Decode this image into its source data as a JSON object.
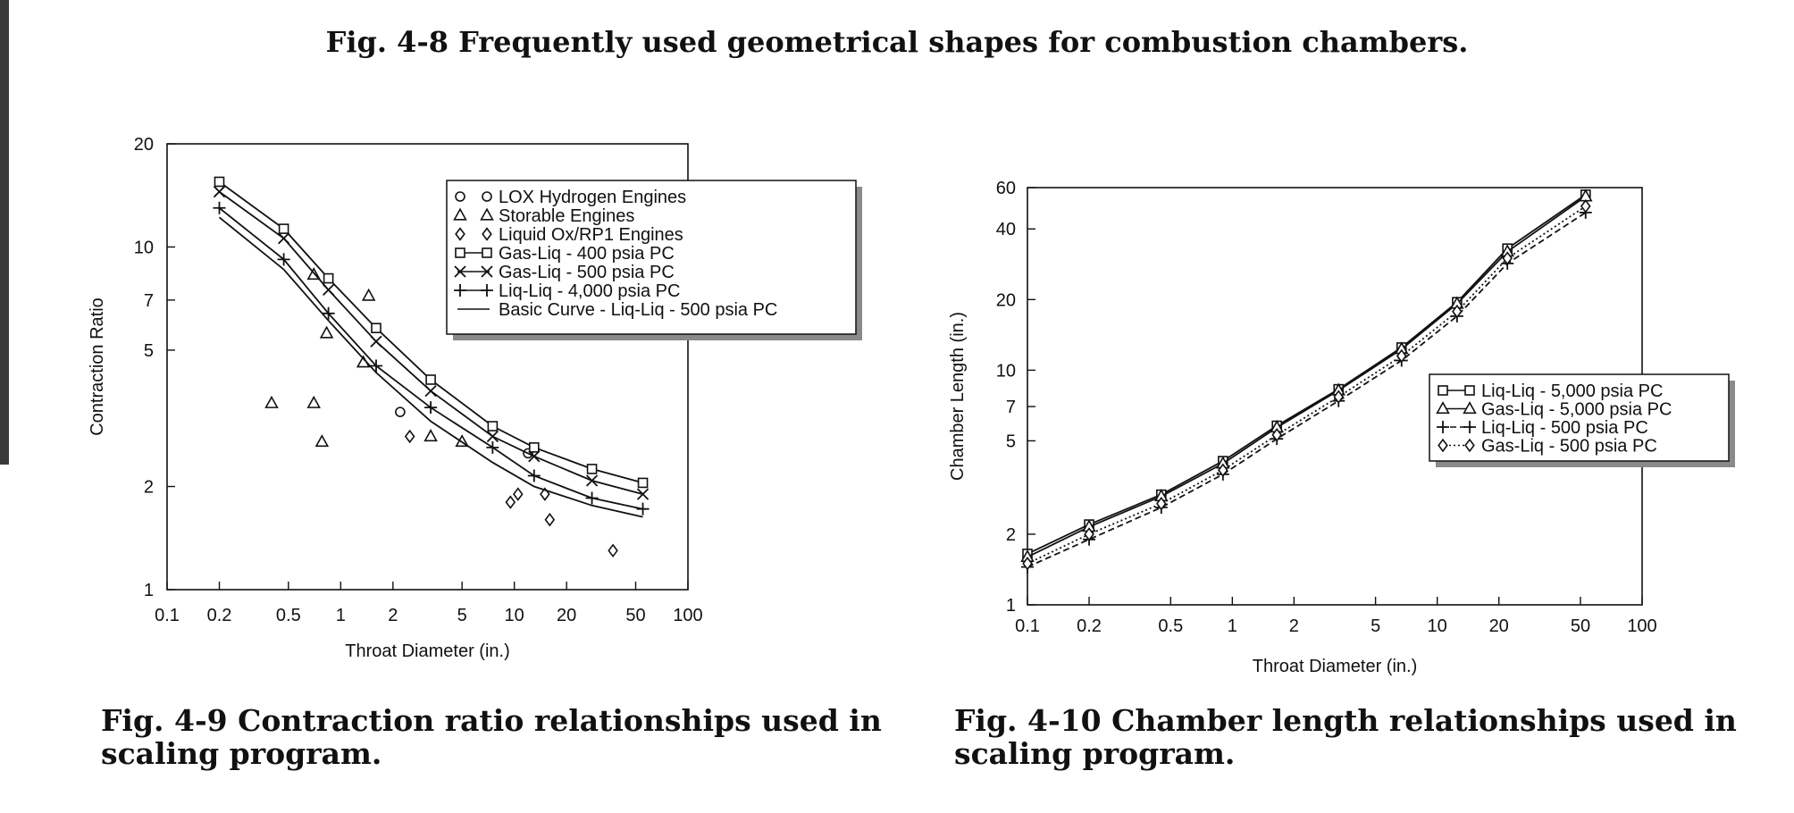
{
  "captions": {
    "top": "Fig. 4-8 Frequently used geometrical shapes for combustion chambers.",
    "left": "Fig. 4-9 Contraction ratio relationships used in scaling program.",
    "right": "Fig. 4-10 Chamber length relationships used in scaling program."
  },
  "chart_data": [
    {
      "type": "scatter",
      "title": "",
      "xlabel": "Throat Diameter (in.)",
      "ylabel": "Contraction Ratio",
      "xscale": "log",
      "yscale": "log",
      "xlim": [
        0.1,
        100
      ],
      "ylim": [
        1,
        20
      ],
      "xticks": [
        0.1,
        0.2,
        0.5,
        1,
        2,
        5,
        10,
        20,
        50,
        100
      ],
      "xtick_labels": [
        "0.1",
        "0.2",
        "0.5",
        "1",
        "2",
        "5",
        "10",
        "20",
        "50",
        "100"
      ],
      "yticks": [
        1,
        2,
        5,
        7,
        10,
        20
      ],
      "ytick_labels": [
        "1",
        "2",
        "5",
        "7",
        "10",
        "20"
      ],
      "grid": false,
      "legend_position": "top-right",
      "series": [
        {
          "name": "LOX Hydrogen Engines",
          "marker": "circle-open",
          "points": [
            [
              2.2,
              3.3
            ],
            [
              12,
              2.5
            ]
          ]
        },
        {
          "name": "Storable Engines",
          "marker": "triangle-open",
          "points": [
            [
              0.4,
              3.5
            ],
            [
              0.7,
              3.5
            ],
            [
              0.78,
              2.7
            ],
            [
              0.7,
              8.3
            ],
            [
              0.83,
              5.6
            ],
            [
              1.35,
              4.6
            ],
            [
              1.45,
              7.2
            ],
            [
              3.3,
              2.8
            ],
            [
              5,
              2.7
            ]
          ]
        },
        {
          "name": "Liquid Ox/RP1 Engines",
          "marker": "diamond-open",
          "points": [
            [
              2.5,
              2.8
            ],
            [
              9.5,
              1.8
            ],
            [
              10.5,
              1.9
            ],
            [
              15,
              1.9
            ],
            [
              16,
              1.6
            ],
            [
              37,
              1.3
            ]
          ]
        },
        {
          "name": "Gas-Liq - 400 psia PC",
          "marker": "square-open",
          "line": true,
          "points": [
            [
              0.2,
              15.5
            ],
            [
              0.47,
              11.3
            ],
            [
              0.85,
              8.1
            ],
            [
              1.6,
              5.8
            ],
            [
              3.3,
              4.1
            ],
            [
              7.5,
              3.0
            ],
            [
              13,
              2.6
            ],
            [
              28,
              2.25
            ],
            [
              55,
              2.05
            ]
          ]
        },
        {
          "name": "Gas-Liq - 500 psia PC",
          "marker": "x",
          "line": true,
          "points": [
            [
              0.2,
              14.5
            ],
            [
              0.47,
              10.6
            ],
            [
              0.85,
              7.5
            ],
            [
              1.6,
              5.3
            ],
            [
              3.3,
              3.8
            ],
            [
              7.5,
              2.8
            ],
            [
              13,
              2.45
            ],
            [
              28,
              2.08
            ],
            [
              55,
              1.9
            ]
          ]
        },
        {
          "name": "Liq-Liq - 4,000 psia PC",
          "marker": "plus",
          "line": true,
          "points": [
            [
              0.2,
              13.0
            ],
            [
              0.47,
              9.2
            ],
            [
              0.85,
              6.4
            ],
            [
              1.6,
              4.5
            ],
            [
              3.3,
              3.4
            ],
            [
              7.5,
              2.6
            ],
            [
              13,
              2.15
            ],
            [
              28,
              1.85
            ],
            [
              55,
              1.72
            ]
          ]
        },
        {
          "name": "Basic Curve - Liq-Liq - 500 psia PC",
          "marker": "none",
          "line": true,
          "points": [
            [
              0.2,
              12.2
            ],
            [
              0.47,
              8.6
            ],
            [
              0.85,
              6.1
            ],
            [
              1.6,
              4.3
            ],
            [
              3.3,
              3.1
            ],
            [
              7.5,
              2.35
            ],
            [
              13,
              2.0
            ],
            [
              28,
              1.76
            ],
            [
              55,
              1.63
            ]
          ]
        }
      ]
    },
    {
      "type": "line",
      "title": "",
      "xlabel": "Throat Diameter (in.)",
      "ylabel": "Chamber Length (in.)",
      "xscale": "log",
      "yscale": "log",
      "xlim": [
        0.1,
        100
      ],
      "ylim": [
        1,
        60
      ],
      "xticks": [
        0.1,
        0.2,
        0.5,
        1,
        2,
        5,
        10,
        20,
        50,
        100
      ],
      "xtick_labels": [
        "0.1",
        "0.2",
        "0.5",
        "1",
        "2",
        "5",
        "10",
        "20",
        "50",
        "100"
      ],
      "yticks": [
        1,
        2,
        5,
        7,
        10,
        20,
        40,
        60
      ],
      "ytick_labels": [
        "1",
        "2",
        "5",
        "7",
        "10",
        "20",
        "40",
        "60"
      ],
      "grid": false,
      "legend_position": "right",
      "series": [
        {
          "name": "Liq-Liq - 5,000 psia PC",
          "marker": "square-open",
          "dash": "solid",
          "points": [
            [
              0.1,
              1.65
            ],
            [
              0.2,
              2.2
            ],
            [
              0.45,
              2.95
            ],
            [
              0.9,
              4.1
            ],
            [
              1.65,
              5.8
            ],
            [
              3.3,
              8.3
            ],
            [
              6.7,
              12.5
            ],
            [
              12.5,
              19.5
            ],
            [
              22,
              33
            ],
            [
              53,
              56
            ]
          ]
        },
        {
          "name": "Gas-Liq - 5,000 psia PC",
          "marker": "triangle-open",
          "dash": "solid",
          "points": [
            [
              0.1,
              1.6
            ],
            [
              0.2,
              2.15
            ],
            [
              0.45,
              2.9
            ],
            [
              0.9,
              4.0
            ],
            [
              1.65,
              5.7
            ],
            [
              3.3,
              8.2
            ],
            [
              6.7,
              12.3
            ],
            [
              12.5,
              19.2
            ],
            [
              22,
              32
            ],
            [
              53,
              55
            ]
          ]
        },
        {
          "name": "Liq-Liq - 500 psia PC",
          "marker": "plus",
          "dash": "dashed",
          "points": [
            [
              0.1,
              1.45
            ],
            [
              0.2,
              1.9
            ],
            [
              0.45,
              2.6
            ],
            [
              0.9,
              3.6
            ],
            [
              1.65,
              5.1
            ],
            [
              3.3,
              7.4
            ],
            [
              6.7,
              11.0
            ],
            [
              12.5,
              17.0
            ],
            [
              22,
              28.5
            ],
            [
              53,
              47
            ]
          ]
        },
        {
          "name": "Gas-Liq - 500 psia PC",
          "marker": "diamond-open",
          "dash": "dotted",
          "points": [
            [
              0.1,
              1.5
            ],
            [
              0.2,
              2.0
            ],
            [
              0.45,
              2.7
            ],
            [
              0.9,
              3.75
            ],
            [
              1.65,
              5.3
            ],
            [
              3.3,
              7.7
            ],
            [
              6.7,
              11.5
            ],
            [
              12.5,
              17.8
            ],
            [
              22,
              30
            ],
            [
              53,
              50
            ]
          ]
        }
      ]
    }
  ]
}
